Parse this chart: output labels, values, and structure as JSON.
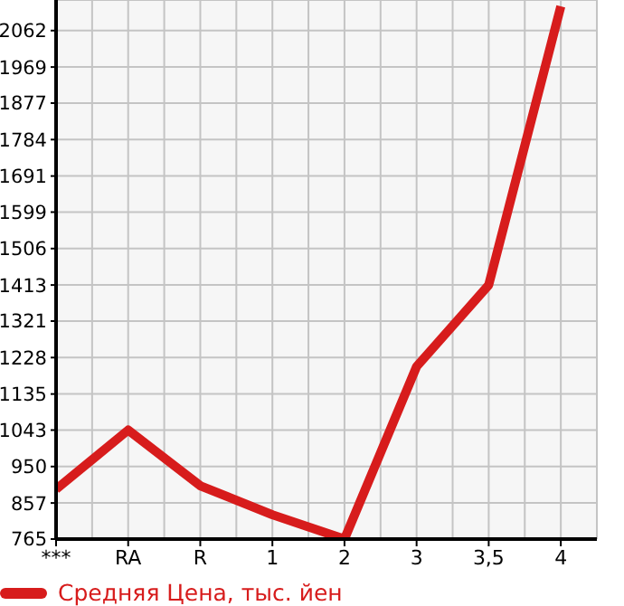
{
  "chart_data": {
    "type": "line",
    "categories": [
      "***",
      "RA",
      "R",
      "1",
      "2",
      "3",
      "3,5",
      "4"
    ],
    "series": [
      {
        "name": "Средняя Цена, тыс. йен",
        "color": "#d71c1c",
        "values": [
          892,
          1043,
          901,
          827,
          765,
          1205,
          1413,
          2124
        ]
      }
    ],
    "ylim": [
      765,
      2140
    ],
    "yticks": [
      765,
      857,
      950,
      1043,
      1135,
      1228,
      1321,
      1413,
      1506,
      1599,
      1691,
      1784,
      1877,
      1969,
      2062
    ],
    "grid": true,
    "legend": "bottom left",
    "marker": "none",
    "line_style": "solid"
  }
}
